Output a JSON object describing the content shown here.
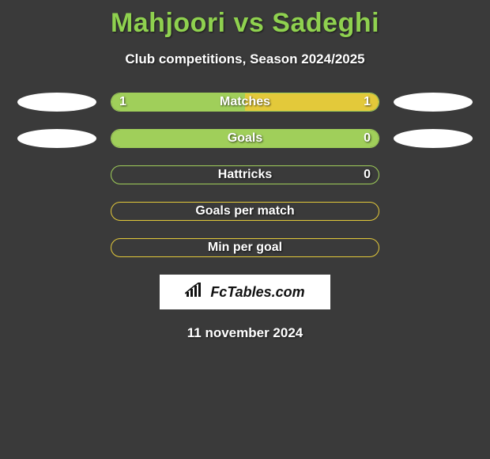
{
  "title": "Mahjoori vs Sadeghi",
  "subtitle": "Club competitions, Season 2024/2025",
  "footer_date": "11 november 2024",
  "branding": {
    "text": "FcTables.com"
  },
  "colors": {
    "title_color": "#8fd14f",
    "background": "#3a3a3a",
    "ellipse": "#ffffff",
    "fill_green": "#a0cf5a",
    "fill_yellow": "#e3c93a",
    "border_green": "#a0cf5a",
    "border_yellow": "#e3c93a"
  },
  "rows": [
    {
      "label": "Matches",
      "left_value": "1",
      "right_value": "1",
      "left_fill_pct": 50,
      "right_fill_pct": 50,
      "left_fill_color": "#a0cf5a",
      "right_fill_color": "#e3c93a",
      "border_color": "#a0cf5a",
      "show_left_ellipse": true,
      "show_right_ellipse": true
    },
    {
      "label": "Goals",
      "left_value": "",
      "right_value": "0",
      "left_fill_pct": 100,
      "right_fill_pct": 0,
      "left_fill_color": "#a0cf5a",
      "right_fill_color": "#e3c93a",
      "border_color": "#a0cf5a",
      "show_left_ellipse": true,
      "show_right_ellipse": true
    },
    {
      "label": "Hattricks",
      "left_value": "",
      "right_value": "0",
      "left_fill_pct": 0,
      "right_fill_pct": 0,
      "left_fill_color": "#a0cf5a",
      "right_fill_color": "#e3c93a",
      "border_color": "#a0cf5a",
      "show_left_ellipse": false,
      "show_right_ellipse": false
    },
    {
      "label": "Goals per match",
      "left_value": "",
      "right_value": "",
      "left_fill_pct": 0,
      "right_fill_pct": 0,
      "left_fill_color": "#a0cf5a",
      "right_fill_color": "#e3c93a",
      "border_color": "#e3c93a",
      "show_left_ellipse": false,
      "show_right_ellipse": false
    },
    {
      "label": "Min per goal",
      "left_value": "",
      "right_value": "",
      "left_fill_pct": 0,
      "right_fill_pct": 0,
      "left_fill_color": "#a0cf5a",
      "right_fill_color": "#e3c93a",
      "border_color": "#e3c93a",
      "show_left_ellipse": false,
      "show_right_ellipse": false
    }
  ]
}
